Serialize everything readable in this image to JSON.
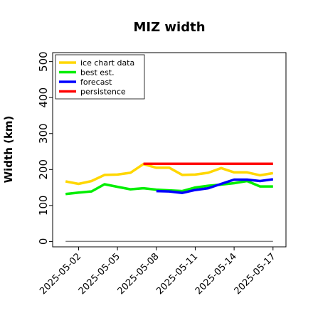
{
  "chart_data": {
    "type": "line",
    "title": "MIZ width",
    "xlabel": "",
    "ylabel": "Width (km)",
    "x_ticks": [
      "2025-05-02",
      "2025-05-05",
      "2025-05-08",
      "2025-05-11",
      "2025-05-14",
      "2025-05-17"
    ],
    "highlight_tick": "2025-05-08",
    "highlight_color": "#228b22",
    "xlim": [
      "2025-04-30",
      "2025-05-18"
    ],
    "ylim": [
      -15,
      525
    ],
    "y_ticks": [
      0,
      100,
      200,
      300,
      400,
      500
    ],
    "grid": false,
    "legend_position": "top-left",
    "series": [
      {
        "name": "ice chart data",
        "color": "#ffd700",
        "points": [
          {
            "x": "2025-05-01",
            "y": 167
          },
          {
            "x": "2025-05-02",
            "y": 160
          },
          {
            "x": "2025-05-03",
            "y": 168
          },
          {
            "x": "2025-05-04",
            "y": 185
          },
          {
            "x": "2025-05-05",
            "y": 186
          },
          {
            "x": "2025-05-06",
            "y": 191
          },
          {
            "x": "2025-05-07",
            "y": 215
          },
          {
            "x": "2025-05-08",
            "y": 205
          },
          {
            "x": "2025-05-09",
            "y": 205
          },
          {
            "x": "2025-05-10",
            "y": 185
          },
          {
            "x": "2025-05-11",
            "y": 186
          },
          {
            "x": "2025-05-12",
            "y": 191
          },
          {
            "x": "2025-05-13",
            "y": 204
          },
          {
            "x": "2025-05-14",
            "y": 192
          },
          {
            "x": "2025-05-15",
            "y": 192
          },
          {
            "x": "2025-05-16",
            "y": 184
          },
          {
            "x": "2025-05-17",
            "y": 190
          }
        ]
      },
      {
        "name": "best est.",
        "color": "#00ee00",
        "points": [
          {
            "x": "2025-05-01",
            "y": 132
          },
          {
            "x": "2025-05-02",
            "y": 136
          },
          {
            "x": "2025-05-03",
            "y": 139
          },
          {
            "x": "2025-05-04",
            "y": 159
          },
          {
            "x": "2025-05-05",
            "y": 152
          },
          {
            "x": "2025-05-06",
            "y": 145
          },
          {
            "x": "2025-05-07",
            "y": 148
          },
          {
            "x": "2025-05-08",
            "y": 144
          },
          {
            "x": "2025-05-09",
            "y": 142
          },
          {
            "x": "2025-05-10",
            "y": 140
          },
          {
            "x": "2025-05-11",
            "y": 150
          },
          {
            "x": "2025-05-12",
            "y": 155
          },
          {
            "x": "2025-05-13",
            "y": 158
          },
          {
            "x": "2025-05-14",
            "y": 162
          },
          {
            "x": "2025-05-15",
            "y": 168
          },
          {
            "x": "2025-05-16",
            "y": 153
          },
          {
            "x": "2025-05-17",
            "y": 153
          }
        ]
      },
      {
        "name": "forecast",
        "color": "#0000ff",
        "points": [
          {
            "x": "2025-05-08",
            "y": 140
          },
          {
            "x": "2025-05-09",
            "y": 139
          },
          {
            "x": "2025-05-10",
            "y": 135
          },
          {
            "x": "2025-05-11",
            "y": 143
          },
          {
            "x": "2025-05-12",
            "y": 148
          },
          {
            "x": "2025-05-13",
            "y": 160
          },
          {
            "x": "2025-05-14",
            "y": 172
          },
          {
            "x": "2025-05-15",
            "y": 172
          },
          {
            "x": "2025-05-16",
            "y": 168
          },
          {
            "x": "2025-05-17",
            "y": 173
          }
        ]
      },
      {
        "name": "persistence",
        "color": "#ff0000",
        "points": [
          {
            "x": "2025-05-07",
            "y": 216
          },
          {
            "x": "2025-05-17",
            "y": 216
          }
        ]
      }
    ],
    "reference_line": {
      "y": 0,
      "from": "2025-05-01",
      "to": "2025-05-17",
      "color": "#808080"
    }
  }
}
